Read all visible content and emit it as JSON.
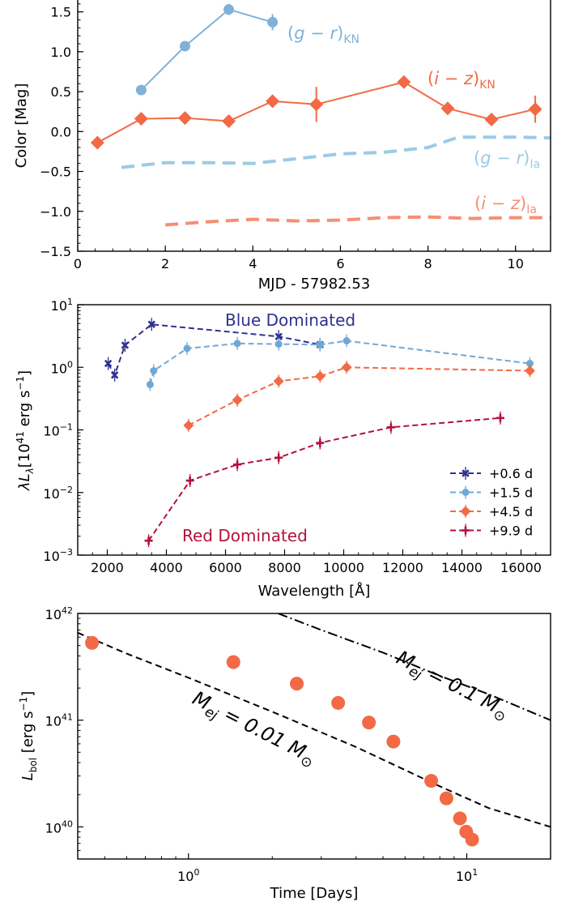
{
  "colors": {
    "kn_gr": "#7fb2d9",
    "kn_iz": "#f26a45",
    "ia_gr": "#9ccae6",
    "ia_iz": "#f58f73",
    "sed_06": "#2e3192",
    "sed_15": "#6fa8d6",
    "sed_45": "#f26a45",
    "sed_99": "#b3123e",
    "bol_points": "#f26a45",
    "model_line": "#000000"
  },
  "chart_data": [
    {
      "type": "line",
      "xlabel": "MJD - 57982.53",
      "ylabel": "Color [Mag]",
      "xlim": [
        0,
        10.8
      ],
      "ylim": [
        -1.5,
        1.75
      ],
      "x_ticks": [
        "0",
        "2",
        "4",
        "6",
        "8",
        "10"
      ],
      "y_ticks": [
        "1.5",
        "1.0",
        "0.5",
        "0.0",
        "−0.5",
        "−1.0",
        "−1.5"
      ],
      "series": [
        {
          "name": "(g − r)KN",
          "x": [
            1.45,
            2.45,
            3.45,
            4.45
          ],
          "y": [
            0.52,
            1.07,
            1.53,
            1.37
          ],
          "yerr": [
            0.02,
            0.03,
            0.07,
            0.1
          ]
        },
        {
          "name": "(i − z)KN",
          "x": [
            0.45,
            1.45,
            2.45,
            3.45,
            4.45,
            5.45,
            7.45,
            8.45,
            9.45,
            10.45
          ],
          "y": [
            -0.14,
            0.16,
            0.17,
            0.13,
            0.38,
            0.34,
            0.62,
            0.29,
            0.15,
            0.28
          ],
          "yerr": [
            0.04,
            0.05,
            0.05,
            0.05,
            0.07,
            0.22,
            0.06,
            0.05,
            0.05,
            0.17
          ]
        },
        {
          "name": "(g − r)Ia",
          "x": [
            1.0,
            2.0,
            3.0,
            4.0,
            5.0,
            6.0,
            7.0,
            8.0,
            8.7,
            9.3,
            10.0,
            10.8
          ],
          "y": [
            -0.45,
            -0.39,
            -0.39,
            -0.4,
            -0.34,
            -0.28,
            -0.26,
            -0.2,
            -0.07,
            -0.07,
            -0.07,
            -0.08
          ]
        },
        {
          "name": "(i − z)Ia",
          "x": [
            2.0,
            3.0,
            4.0,
            5.0,
            6.0,
            7.0,
            8.0,
            9.0,
            10.0,
            10.8
          ],
          "y": [
            -1.17,
            -1.13,
            -1.1,
            -1.12,
            -1.11,
            -1.08,
            -1.07,
            -1.09,
            -1.08,
            -1.08
          ]
        }
      ]
    },
    {
      "type": "line",
      "title_blue": "Blue Dominated",
      "title_red": "Red Dominated",
      "xlabel": "Wavelength [Å]",
      "ylabel": "λL",
      "ylabel_sub": "λ",
      "ylabel_unit": "[10",
      "ylabel_exp": "41",
      "ylabel_unit2": " erg s",
      "ylabel_exp2": "−1",
      "ylabel_end": "]",
      "xlim": [
        1000,
        17000
      ],
      "ylim": [
        0.001,
        10
      ],
      "log_y": true,
      "x_ticks": [
        "2000",
        "4000",
        "6000",
        "8000",
        "10000",
        "12000",
        "14000",
        "16000"
      ],
      "y_tick_base": "10",
      "y_tick_exps": [
        "1",
        "0",
        "−1",
        "−2",
        "−3"
      ],
      "legend_position": "lower right",
      "series": [
        {
          "name": "+0.6 d",
          "x": [
            2030,
            2250,
            2600,
            3500,
            7800,
            9200
          ],
          "y": [
            1.15,
            0.75,
            2.25,
            4.85,
            3.1,
            2.3
          ]
        },
        {
          "name": "+1.5 d",
          "x": [
            3450,
            3570,
            4700,
            6400,
            7800,
            9200,
            10100,
            16300
          ],
          "y": [
            0.53,
            0.88,
            2.0,
            2.4,
            2.35,
            2.3,
            2.65,
            1.15
          ]
        },
        {
          "name": "+4.5 d",
          "x": [
            4750,
            6400,
            7800,
            9200,
            10100,
            16300
          ],
          "y": [
            0.118,
            0.3,
            0.6,
            0.72,
            1.0,
            0.88
          ]
        },
        {
          "name": "+9.9 d",
          "x": [
            3400,
            4800,
            6400,
            7800,
            9200,
            11600,
            15300
          ],
          "y": [
            0.0017,
            0.0155,
            0.028,
            0.036,
            0.062,
            0.11,
            0.155
          ]
        }
      ]
    },
    {
      "type": "scatter",
      "xlabel": "Time [Days]",
      "ylabel": "L",
      "ylabel_sub": "bol",
      "ylabel_unit": " [erg s",
      "ylabel_exp": "−1",
      "ylabel_end": "]",
      "xlim": [
        0.4,
        20
      ],
      "ylim": [
        5e+39,
        1e+42
      ],
      "log_x": true,
      "log_y": true,
      "x_tick_base": "10",
      "x_tick_exps": [
        "0",
        "1"
      ],
      "y_tick_base": "10",
      "y_tick_exps": [
        "42",
        "41",
        "40"
      ],
      "points": {
        "x": [
          0.45,
          1.45,
          2.45,
          3.45,
          4.45,
          5.45,
          7.45,
          8.45,
          9.45,
          9.95,
          10.45
        ],
        "y": [
          5.3e+41,
          3.5e+41,
          2.2e+41,
          1.45e+41,
          9.5e+40,
          6.3e+40,
          2.7e+40,
          1.85e+40,
          1.2e+40,
          9e+39,
          7.6e+39
        ]
      },
      "models": [
        {
          "name": "M_ej = 0.01 M_sun",
          "label_main": "M",
          "label_sub": "ej",
          "label_rest": " = 0.01 M",
          "label_sun": "⊙",
          "style": "dashed",
          "x": [
            0.4,
            0.6,
            1,
            2,
            4,
            8,
            12,
            20
          ],
          "y": [
            6.6e+41,
            4.2e+41,
            2.5e+41,
            1.2e+41,
            5.6e+40,
            2.4e+40,
            1.5e+40,
            1e+40
          ]
        },
        {
          "name": "M_ej = 0.1 M_sun",
          "label_main": "M",
          "label_sub": "ej",
          "label_rest": " = 0.1 M",
          "label_sun": "⊙",
          "style": "dashdot",
          "x": [
            2.1,
            3,
            5,
            8,
            12,
            20
          ],
          "y": [
            1e+42,
            7e+41,
            4.3e+41,
            2.6e+41,
            1.75e+41,
            1e+41
          ]
        }
      ]
    }
  ]
}
